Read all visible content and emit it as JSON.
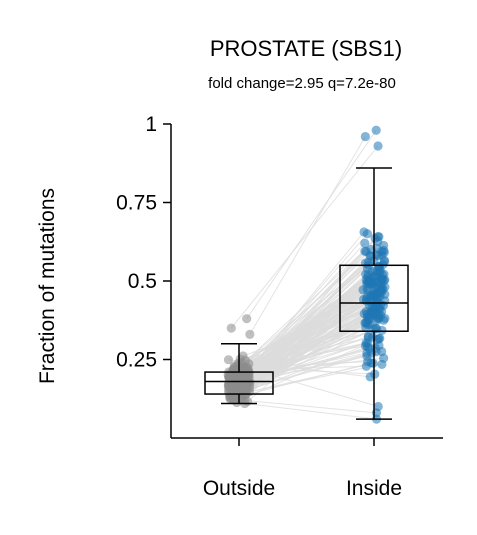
{
  "chart_data": {
    "type": "box-strip",
    "title": "PROSTATE (SBS1)",
    "subtitle": "fold change=2.95 q=7.2e-80",
    "ylabel": "Fraction of mutations",
    "categories": [
      "Outside",
      "Inside"
    ],
    "ylim": [
      0,
      1
    ],
    "yticks": [
      {
        "value": 0.25,
        "label": "0.25"
      },
      {
        "value": 0.5,
        "label": "0.5"
      },
      {
        "value": 0.75,
        "label": "0.75"
      },
      {
        "value": 1,
        "label": "1"
      }
    ],
    "paired_lines": true,
    "series": [
      {
        "category": "Outside",
        "color": "#8c8c8c",
        "box": {
          "q1": 0.14,
          "median": 0.18,
          "q3": 0.21,
          "whisker_low": 0.11,
          "whisker_high": 0.3
        },
        "point_range": [
          0.11,
          0.38
        ]
      },
      {
        "category": "Inside",
        "color": "#1f77b4",
        "box": {
          "q1": 0.34,
          "median": 0.43,
          "q3": 0.55,
          "whisker_low": 0.06,
          "whisker_high": 0.86
        },
        "point_range": [
          0.06,
          0.98
        ]
      }
    ]
  }
}
